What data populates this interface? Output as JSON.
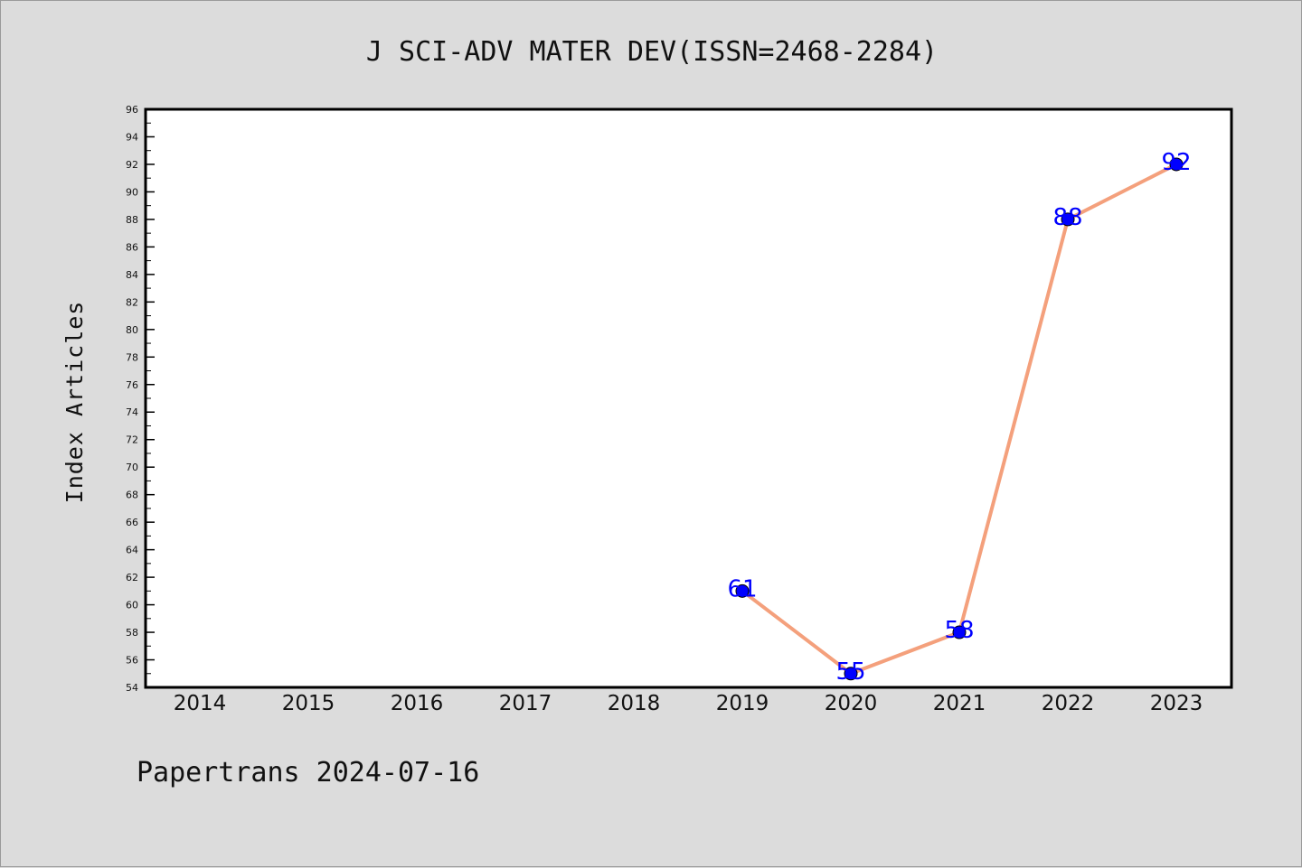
{
  "chart_data": {
    "type": "line",
    "title": "J SCI-ADV MATER DEV(ISSN=2468-2284)",
    "ylabel": "Index Articles",
    "xlabel": "",
    "footer": "Papertrans 2024-07-16",
    "categories": [
      "2014",
      "2015",
      "2016",
      "2017",
      "2018",
      "2019",
      "2020",
      "2021",
      "2022",
      "2023"
    ],
    "series": [
      {
        "x": [
          "2019",
          "2020",
          "2021",
          "2022",
          "2023"
        ],
        "values": [
          61,
          55,
          58,
          88,
          92
        ]
      }
    ],
    "ylim": [
      54,
      96
    ],
    "yticks": [
      "54",
      "56",
      "58",
      "60",
      "62",
      "64",
      "66",
      "68",
      "70",
      "72",
      "74",
      "76",
      "78",
      "80",
      "82",
      "84",
      "86",
      "88",
      "90",
      "92",
      "94",
      "96"
    ],
    "grid": false,
    "legend": "none",
    "colors": {
      "line": "#f4a07c",
      "marker": "#0000ff",
      "data_label": "#0000ff",
      "plot_background": "#ffffff",
      "page_background": "#dcdcdc"
    }
  }
}
